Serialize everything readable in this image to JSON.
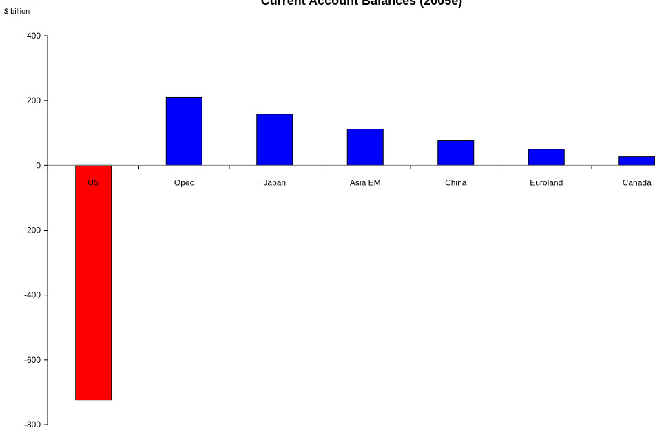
{
  "chart_data": {
    "type": "bar",
    "title": "Current Account Balances (2005e)",
    "ylabel": "$ billion",
    "xlabel": "",
    "categories": [
      "US",
      "Opec",
      "Japan",
      "Asia EM",
      "China",
      "Euroland",
      "Canada"
    ],
    "values": [
      -725,
      210,
      158,
      112,
      76,
      50,
      27
    ],
    "bar_colors": [
      "#ff0000",
      "#0000ff",
      "#0000ff",
      "#0000ff",
      "#0000ff",
      "#0000ff",
      "#0000ff"
    ],
    "ylim": [
      -800,
      400
    ],
    "yticks": [
      400,
      200,
      0,
      -200,
      -400,
      -600,
      -800
    ],
    "grid": false,
    "legend": "none"
  }
}
